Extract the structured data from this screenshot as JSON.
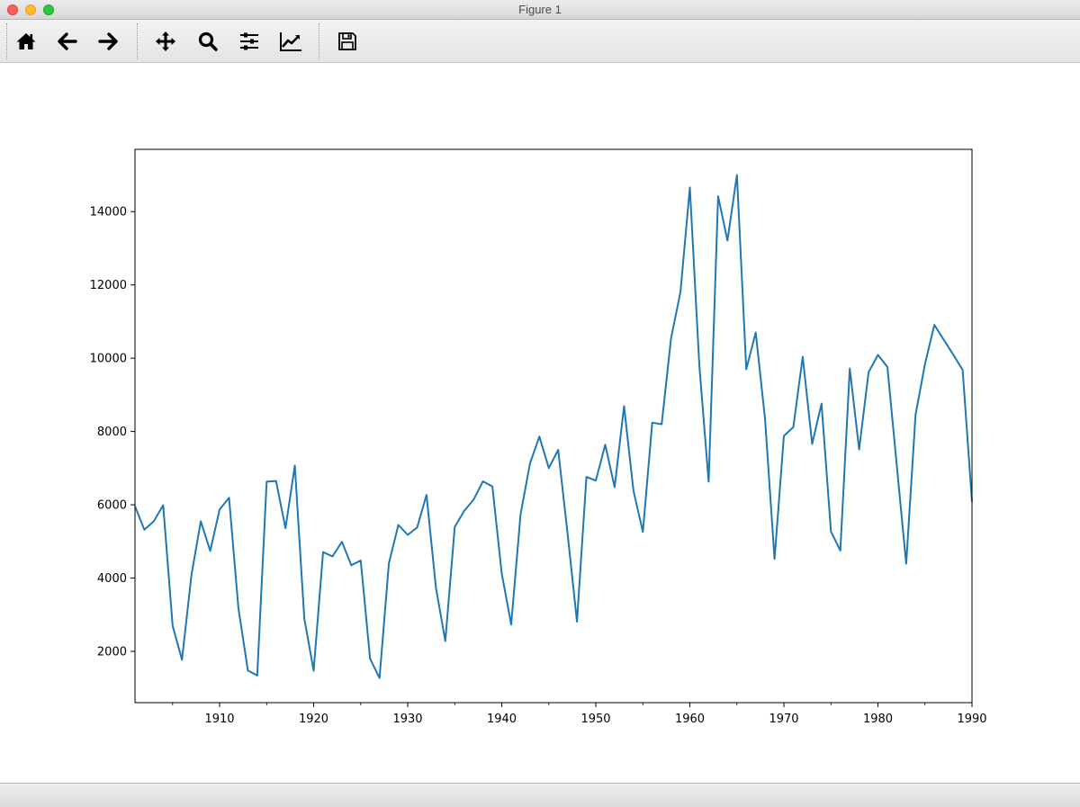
{
  "window": {
    "title": "Figure 1"
  },
  "toolbar": {
    "buttons": [
      {
        "name": "home-button",
        "icon": "home-icon"
      },
      {
        "name": "back-button",
        "icon": "arrow-left-icon"
      },
      {
        "name": "forward-button",
        "icon": "arrow-right-icon"
      },
      {
        "name": "pan-button",
        "icon": "move-icon"
      },
      {
        "name": "zoom-button",
        "icon": "magnifier-icon"
      },
      {
        "name": "configure-subplots-button",
        "icon": "sliders-icon"
      },
      {
        "name": "edit-axes-button",
        "icon": "line-chart-icon"
      },
      {
        "name": "save-button",
        "icon": "floppy-disk-icon"
      }
    ]
  },
  "colors": {
    "line": "#1f77b4",
    "axes": "#000000"
  },
  "chart_data": {
    "type": "line",
    "title": "",
    "xlabel": "",
    "ylabel": "",
    "xlim": [
      1901,
      1990
    ],
    "ylim": [
      600,
      15700
    ],
    "xticks": [
      1910,
      1920,
      1930,
      1940,
      1950,
      1960,
      1970,
      1980,
      1990
    ],
    "yticks": [
      2000,
      4000,
      6000,
      8000,
      10000,
      12000,
      14000
    ],
    "x_minor_ticks": [
      1905,
      1915,
      1925,
      1935,
      1945,
      1955,
      1965,
      1975,
      1985
    ],
    "grid": false,
    "legend": false,
    "series": [
      {
        "x": [
          1901,
          1902,
          1903,
          1904,
          1905,
          1906,
          1907,
          1908,
          1909,
          1910,
          1911,
          1912,
          1913,
          1914,
          1915,
          1916,
          1917,
          1918,
          1919,
          1920,
          1921,
          1922,
          1923,
          1924,
          1925,
          1926,
          1927,
          1928,
          1929,
          1930,
          1931,
          1932,
          1933,
          1934,
          1935,
          1936,
          1937,
          1938,
          1939,
          1940,
          1941,
          1942,
          1943,
          1944,
          1945,
          1946,
          1947,
          1948,
          1949,
          1950,
          1951,
          1952,
          1953,
          1954,
          1955,
          1956,
          1957,
          1958,
          1959,
          1960,
          1961,
          1962,
          1963,
          1964,
          1965,
          1966,
          1967,
          1968,
          1969,
          1970,
          1971,
          1972,
          1973,
          1974,
          1975,
          1976,
          1977,
          1978,
          1979,
          1980,
          1981,
          1982,
          1983,
          1984,
          1985,
          1986,
          1987,
          1988,
          1989,
          1990
        ],
        "values": [
          5960,
          5320,
          5550,
          5990,
          2700,
          1770,
          4080,
          5550,
          4740,
          5870,
          6190,
          3180,
          1480,
          1340,
          6630,
          6650,
          5360,
          7070,
          2900,
          1470,
          4710,
          4590,
          4990,
          4350,
          4480,
          1800,
          1270,
          4400,
          5450,
          5180,
          5380,
          6270,
          3730,
          2280,
          5400,
          5830,
          6140,
          6640,
          6500,
          4120,
          2730,
          5740,
          7130,
          7860,
          7000,
          7500,
          5200,
          2810,
          6760,
          6660,
          7640,
          6480,
          8690,
          6390,
          5260,
          8240,
          8200,
          10540,
          11810,
          14660,
          9820,
          6630,
          14420,
          13210,
          15000,
          9700,
          10700,
          8330,
          4520,
          7880,
          8120,
          10040,
          7660,
          8760,
          5270,
          4750,
          9720,
          7510,
          9620,
          10090,
          9760,
          7080,
          4390,
          8460,
          9850,
          10910,
          10500,
          10100,
          9680,
          6080
        ]
      }
    ]
  }
}
